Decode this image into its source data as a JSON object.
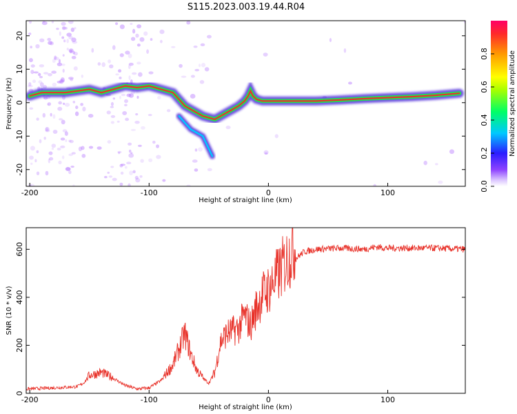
{
  "title": "S115.2023.003.19.44.R04",
  "colors": {
    "snr_line": "#e8322a",
    "ridge_core": "#e8322a",
    "ridge_mid": "#22dd55",
    "ridge_outer": "#3f18d6",
    "scatter": "#b77aff"
  },
  "chart_data": [
    {
      "type": "heatmap",
      "title": "S115.2023.003.19.44.R04",
      "xlabel": "Height of straight line (km)",
      "ylabel": "Frequency (Hz)",
      "xlim": [
        -203,
        165
      ],
      "ylim": [
        -25,
        24.5
      ],
      "xticks": [
        -200,
        -100,
        0,
        100
      ],
      "yticks": [
        20,
        10,
        0,
        -10,
        -20
      ],
      "ridge": {
        "x": [
          -200,
          -190,
          -180,
          -170,
          -160,
          -150,
          -140,
          -130,
          -120,
          -110,
          -100,
          -90,
          -80,
          -75,
          -70,
          -65,
          -60,
          -55,
          -50,
          -45,
          -40,
          -35,
          -30,
          -25,
          -20,
          -17,
          -15,
          -13,
          -10,
          -5,
          0,
          10,
          20,
          40,
          60,
          80,
          100,
          120,
          140,
          160
        ],
        "y": [
          2,
          3,
          3,
          3,
          3.5,
          4,
          3,
          4,
          5,
          4.5,
          5,
          4,
          3,
          1,
          -1,
          -2,
          -3,
          -4,
          -4.5,
          -5,
          -4,
          -3,
          -2,
          -1,
          0.5,
          2,
          3.5,
          2,
          1,
          0.5,
          0.5,
          0.5,
          0.5,
          0.5,
          0.8,
          1.2,
          1.5,
          1.8,
          2.2,
          2.8
        ]
      },
      "side_branch": {
        "x": [
          -75,
          -70,
          -65,
          -60,
          -55,
          -47
        ],
        "y": [
          -4,
          -6,
          -8,
          -9,
          -10,
          -16
        ]
      },
      "colorbar": {
        "label": "Normalized spectral amplitude",
        "range": [
          0,
          1
        ],
        "ticks": [
          "0.0",
          "0.2",
          "0.4",
          "0.6",
          "0.8"
        ],
        "tick_values": [
          0,
          0.2,
          0.4,
          0.6,
          0.8
        ]
      }
    },
    {
      "type": "line",
      "xlabel": "Height of straight line (km)",
      "ylabel": "SNR (10 * v/v)",
      "xlim": [
        -203,
        165
      ],
      "ylim": [
        0,
        690
      ],
      "xticks": [
        -200,
        -100,
        0,
        100
      ],
      "yticks": [
        0,
        200,
        400,
        600
      ],
      "series": [
        {
          "x": [
            -203,
            -180,
            -160,
            -155,
            -150,
            -140,
            -130,
            -120,
            -110,
            -100,
            -90,
            -80,
            -75,
            -70,
            -65,
            -60,
            -55,
            -50,
            -45,
            -40,
            -35,
            -30,
            -25,
            -20,
            -15,
            -10,
            -5,
            0,
            10,
            20,
            30,
            40,
            60,
            80,
            90,
            100,
            120,
            140,
            165
          ],
          "y": [
            15,
            20,
            25,
            40,
            70,
            80,
            60,
            30,
            15,
            20,
            50,
            110,
            170,
            230,
            150,
            90,
            60,
            40,
            80,
            200,
            230,
            240,
            250,
            300,
            260,
            330,
            380,
            400,
            470,
            550,
            590,
            600,
            605,
            600,
            610,
            605,
            605,
            605,
            600
          ]
        }
      ]
    }
  ]
}
